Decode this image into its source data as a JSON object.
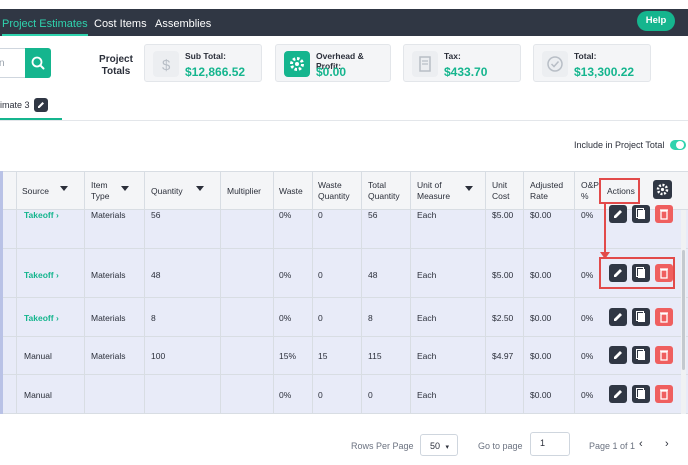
{
  "nav": {
    "tabs": [
      {
        "label": "Project Estimates",
        "active": true
      },
      {
        "label": "Cost Items",
        "active": false
      },
      {
        "label": "Assemblies",
        "active": false
      }
    ],
    "help_label": "Help"
  },
  "search": {
    "placeholder": "n"
  },
  "totals": {
    "title": "Project Totals",
    "cards": [
      {
        "label": "Sub Total:",
        "value": "$12,866.52",
        "icon": "dollar-icon"
      },
      {
        "label": "Overhead & Profit:",
        "value": "$0.00",
        "icon": "gear-icon"
      },
      {
        "label": "Tax:",
        "value": "$433.70",
        "icon": "receipt-icon"
      },
      {
        "label": "Total:",
        "value": "$13,300.22",
        "icon": "check-circle-icon"
      }
    ]
  },
  "estimate_tab": {
    "label": "imate 3"
  },
  "include_label": "Include in Project Total",
  "table": {
    "headers": {
      "source": "Source",
      "item_type": "Item Type",
      "quantity": "Quantity",
      "multiplier": "Multiplier",
      "waste": "Waste",
      "waste_quantity": "Waste Quantity",
      "total_quantity": "Total Quantity",
      "uom": "Unit of Measure",
      "unit_cost": "Unit Cost",
      "adjusted_rate": "Adjusted Rate",
      "op": "O&P %",
      "actions": "Actions"
    },
    "rows": [
      {
        "source": "Takeoff ›",
        "item_type": "Materials",
        "quantity": "56",
        "multiplier": "",
        "waste": "0%",
        "waste_quantity": "0",
        "total_quantity": "56",
        "uom": "Each",
        "unit_cost": "$5.00",
        "adjusted_rate": "$0.00",
        "op": "0%"
      },
      {
        "source": "Takeoff ›",
        "item_type": "Materials",
        "quantity": "48",
        "multiplier": "",
        "waste": "0%",
        "waste_quantity": "0",
        "total_quantity": "48",
        "uom": "Each",
        "unit_cost": "$5.00",
        "adjusted_rate": "$0.00",
        "op": "0%"
      },
      {
        "source": "Takeoff ›",
        "item_type": "Materials",
        "quantity": "8",
        "multiplier": "",
        "waste": "0%",
        "waste_quantity": "0",
        "total_quantity": "8",
        "uom": "Each",
        "unit_cost": "$2.50",
        "adjusted_rate": "$0.00",
        "op": "0%"
      },
      {
        "source": "Manual",
        "item_type": "Materials",
        "quantity": "100",
        "multiplier": "",
        "waste": "15%",
        "waste_quantity": "15",
        "total_quantity": "115",
        "uom": "Each",
        "unit_cost": "$4.97",
        "adjusted_rate": "$0.00",
        "op": "0%"
      },
      {
        "source": "Manual",
        "item_type": "",
        "quantity": "",
        "multiplier": "",
        "waste": "0%",
        "waste_quantity": "0",
        "total_quantity": "0",
        "uom": "Each",
        "unit_cost": "",
        "adjusted_rate": "$0.00",
        "op": "0%"
      }
    ]
  },
  "footer": {
    "rows_per_page_label": "Rows Per Page",
    "rows_per_page_value": "50",
    "go_to_page_label": "Go to page",
    "go_to_page_value": "1",
    "page_info": "Page 1 of 1"
  },
  "colors": {
    "accent": "#15b58e",
    "dark": "#303744",
    "danger": "#ef5f5f",
    "highlight": "#e24a4a"
  }
}
